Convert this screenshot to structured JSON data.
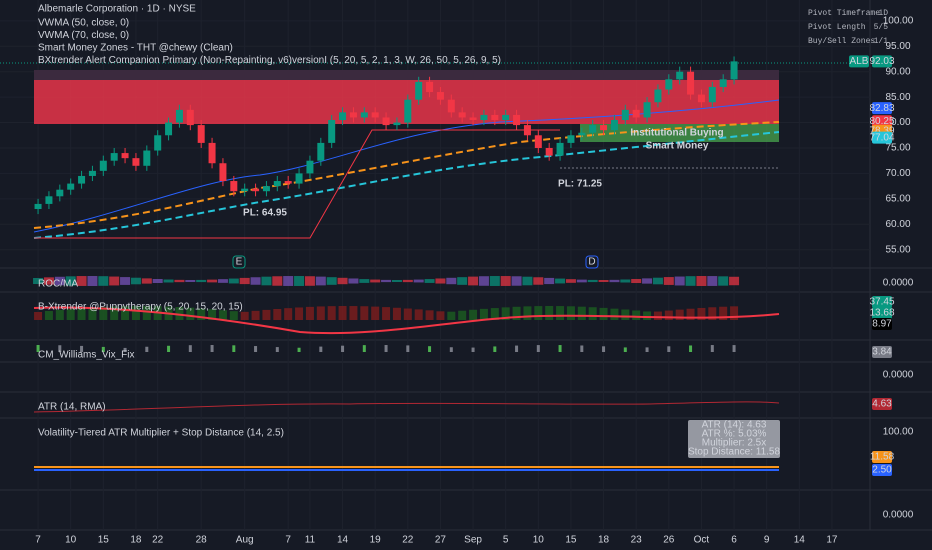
{
  "header": {
    "title": "Albemarle Corporation · 1D · NYSE",
    "indicators": [
      "VWMA (50, close, 0)",
      "VWMA (70, close, 0)",
      "Smart Money Zones - THT @chewy (Clean)",
      "BXtrender Alert Companion Primary (Non-Repainting, v6)versionI (5, 20, 5, 2, 1, 3, W, 26, 50, 5, 26, 9, 5)"
    ]
  },
  "pivot_settings": [
    {
      "label": "Pivot Timeframe",
      "value": "1D"
    },
    {
      "label": "Pivot Length",
      "value": "5/5"
    },
    {
      "label": "Buy/Sell Zones",
      "value": "1/1"
    }
  ],
  "chart_data": {
    "type": "candlestick",
    "symbol": "ALB",
    "open": [
      63.0,
      64.0,
      65.5,
      66.8,
      68.0,
      69.5,
      70.5,
      72.5,
      74.0,
      73.0,
      71.5,
      74.5,
      77.5,
      80.0,
      82.5,
      79.5,
      76.0,
      72.0,
      68.5,
      66.5,
      67.0,
      66.5,
      67.5,
      68.5,
      68.0,
      70.0,
      72.5,
      76.0,
      80.5,
      82.0,
      81.0,
      82.0,
      81.0,
      79.5,
      80.0,
      84.5,
      88.0,
      86.0,
      84.5,
      82.0,
      81.0,
      80.5,
      81.5,
      80.5,
      81.5,
      79.5,
      77.5,
      75.0,
      73.5,
      76.0,
      77.5,
      78.0,
      79.5,
      78.5,
      80.5,
      82.5,
      81.0,
      84.0,
      86.5,
      88.5,
      90.0,
      85.5,
      84.0,
      87.0,
      88.5
    ],
    "high": [
      65.0,
      66.5,
      67.8,
      69.0,
      70.5,
      71.5,
      73.5,
      75.0,
      75.0,
      74.0,
      75.5,
      78.5,
      81.0,
      83.5,
      83.5,
      80.5,
      77.0,
      73.0,
      69.5,
      68.0,
      68.0,
      68.5,
      69.5,
      69.5,
      71.0,
      73.5,
      77.0,
      81.5,
      83.0,
      83.0,
      83.0,
      83.0,
      82.0,
      81.0,
      85.5,
      89.0,
      89.0,
      87.0,
      85.5,
      83.0,
      82.0,
      82.5,
      82.5,
      82.5,
      82.5,
      80.5,
      78.5,
      76.0,
      77.0,
      78.5,
      79.0,
      80.5,
      80.5,
      81.5,
      83.5,
      83.5,
      85.0,
      87.5,
      89.5,
      91.0,
      91.0,
      86.5,
      88.0,
      89.5,
      93.0
    ],
    "low": [
      62.0,
      63.0,
      64.5,
      65.8,
      67.0,
      68.5,
      69.5,
      71.5,
      72.0,
      70.5,
      70.5,
      73.5,
      76.5,
      79.0,
      78.5,
      75.0,
      71.0,
      67.5,
      65.5,
      65.5,
      65.5,
      65.5,
      66.5,
      67.0,
      67.0,
      69.0,
      71.5,
      75.0,
      79.5,
      80.0,
      80.0,
      80.0,
      78.5,
      78.5,
      79.0,
      83.5,
      85.0,
      83.5,
      81.0,
      80.0,
      79.5,
      79.5,
      79.5,
      79.5,
      78.5,
      76.5,
      74.0,
      72.5,
      72.5,
      75.0,
      76.5,
      77.0,
      77.5,
      77.5,
      79.5,
      80.0,
      80.0,
      83.0,
      85.5,
      87.5,
      84.5,
      83.0,
      83.0,
      86.0,
      87.5
    ],
    "close": [
      64.0,
      65.5,
      66.8,
      68.0,
      69.5,
      70.5,
      72.5,
      74.0,
      73.0,
      71.5,
      74.5,
      77.5,
      80.0,
      82.5,
      79.5,
      76.0,
      72.0,
      68.5,
      66.5,
      67.0,
      66.5,
      67.5,
      68.5,
      68.0,
      70.0,
      72.5,
      76.0,
      80.5,
      82.0,
      81.0,
      82.0,
      81.0,
      79.5,
      80.0,
      84.5,
      88.0,
      86.0,
      84.5,
      82.0,
      81.0,
      80.5,
      81.5,
      80.5,
      81.5,
      79.5,
      77.5,
      75.0,
      73.5,
      76.0,
      77.5,
      78.0,
      79.5,
      78.5,
      80.5,
      82.5,
      81.0,
      84.0,
      86.5,
      88.5,
      90.0,
      85.5,
      84.0,
      87.0,
      88.5,
      92.03
    ],
    "up_color": "#089981",
    "down_color": "#f23645",
    "ylim": [
      51.4,
      104.1
    ],
    "yticks": [
      {
        "value": 100,
        "label": "100.00"
      },
      {
        "value": 95,
        "label": "95.00"
      },
      {
        "value": 90,
        "label": "90.00"
      },
      {
        "value": 85,
        "label": "85.00"
      },
      {
        "value": 80,
        "label": "80.00"
      },
      {
        "value": 75,
        "label": "75.00"
      },
      {
        "value": 70,
        "label": "70.00"
      },
      {
        "value": 65,
        "label": "65.00"
      },
      {
        "value": 60,
        "label": "60.00"
      },
      {
        "value": 55,
        "label": "55.00"
      }
    ],
    "xlim": [
      -3.5,
      76.5
    ],
    "xticks": [
      {
        "value": 0,
        "label": "7"
      },
      {
        "value": 3,
        "label": "10"
      },
      {
        "value": 6,
        "label": "15"
      },
      {
        "value": 9,
        "label": "18"
      },
      {
        "value": 11,
        "label": "22"
      },
      {
        "value": 15,
        "label": "28"
      },
      {
        "value": 19,
        "label": "Aug"
      },
      {
        "value": 23,
        "label": "7"
      },
      {
        "value": 25,
        "label": "11"
      },
      {
        "value": 28,
        "label": "14"
      },
      {
        "value": 31,
        "label": "19"
      },
      {
        "value": 34,
        "label": "22"
      },
      {
        "value": 37,
        "label": "27"
      },
      {
        "value": 40,
        "label": "Sep"
      },
      {
        "value": 43,
        "label": "5"
      },
      {
        "value": 46,
        "label": "10"
      },
      {
        "value": 49,
        "label": "15"
      },
      {
        "value": 52,
        "label": "18"
      },
      {
        "value": 55,
        "label": "23"
      },
      {
        "value": 58,
        "label": "26"
      },
      {
        "value": 61,
        "label": "Oct"
      },
      {
        "value": 64,
        "label": "6"
      },
      {
        "value": 67,
        "label": "9"
      },
      {
        "value": 70,
        "label": "14"
      },
      {
        "value": 73,
        "label": "17"
      }
    ],
    "price_labels": [
      {
        "value": 92.03,
        "color": "#089981"
      },
      {
        "value": 82.83,
        "color": "#2962ff"
      },
      {
        "value": 80.25,
        "color": "#f23645"
      },
      {
        "value": 78.39,
        "color": "#f7931a"
      },
      {
        "value": 77.04,
        "color": "#26c6da"
      }
    ],
    "annotations": [
      "PL: 64.95",
      "PL: 71.25",
      "Institutional Buying",
      "Smart Money"
    ],
    "events": [
      "E",
      "D"
    ]
  },
  "panes": [
    {
      "title": "ROC/MA",
      "axis_label": "0.0000",
      "badges": []
    },
    {
      "title": "B-Xtrender @Puppytherapy (5, 20, 15, 20, 15)",
      "axis_label": "",
      "badges": [
        {
          "label": "37.45",
          "color": "#089981"
        },
        {
          "label": "13.68",
          "color": "#089981"
        },
        {
          "label": "8.97",
          "color": "#000000"
        }
      ]
    },
    {
      "title": "CM_Williams_Vix_Fix",
      "axis_label": "",
      "badges": [
        {
          "label": "3.84",
          "color": "#787b86"
        }
      ]
    },
    {
      "title": "",
      "axis_label": "0.0000",
      "badges": []
    },
    {
      "title": "ATR (14, RMA)",
      "axis_label": "",
      "badges": [
        {
          "label": "4.63",
          "color": "#b22833"
        }
      ]
    },
    {
      "title": "Volatility-Tiered ATR Multiplier + Stop Distance (14, 2.5)",
      "axis_label": "100.00",
      "badges": [
        {
          "label": "11.58",
          "color": "#f7931a"
        },
        {
          "label": "2.50",
          "color": "#2962ff"
        }
      ]
    },
    {
      "title": "",
      "axis_label": "0.0000",
      "badges": []
    }
  ],
  "tooltip": [
    "ATR (14): 4.63",
    "ATR %: 5.03%",
    "Multiplier: 2.5x",
    "Stop Distance: 11.58"
  ]
}
